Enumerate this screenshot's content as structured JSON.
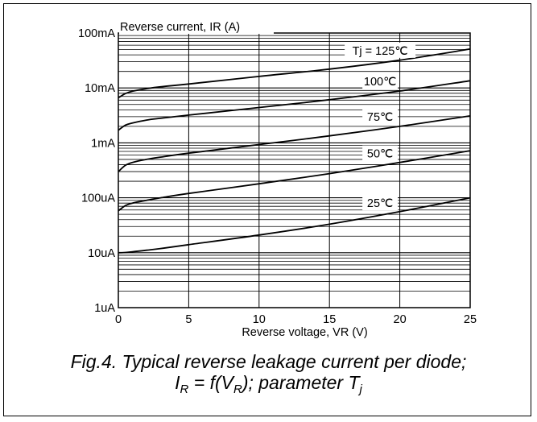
{
  "chart_data": {
    "type": "line",
    "ylabel": "Reverse current, IR (A)",
    "xlabel": "Reverse voltage, VR (V)",
    "x_ticks": [
      0,
      5,
      10,
      15,
      20,
      25
    ],
    "x_tick_labels": [
      "0",
      "5",
      "10",
      "15",
      "20",
      "25"
    ],
    "xlim": [
      0,
      25
    ],
    "y_scale": "log",
    "ylim": [
      1e-06,
      0.1
    ],
    "y_tick_values": [
      1e-06,
      1e-05,
      0.0001,
      0.001,
      0.01,
      0.1
    ],
    "y_tick_labels": [
      "1uA",
      "10uA",
      "100uA",
      "1mA",
      "10mA",
      "100mA"
    ],
    "grid": true,
    "series": [
      {
        "name": "Tj = 125℃",
        "x": [
          0,
          0.5,
          1,
          2,
          3,
          5,
          10,
          15,
          20,
          25
        ],
        "y": [
          0.0066,
          0.0079,
          0.0087,
          0.0097,
          0.0105,
          0.0118,
          0.0162,
          0.022,
          0.032,
          0.051
        ]
      },
      {
        "name": "100℃",
        "x": [
          0,
          0.5,
          1,
          2,
          3,
          5,
          10,
          15,
          20,
          25
        ],
        "y": [
          0.0017,
          0.0021,
          0.0023,
          0.0026,
          0.0028,
          0.0032,
          0.0044,
          0.0061,
          0.0088,
          0.0135
        ]
      },
      {
        "name": "75℃",
        "x": [
          0,
          0.5,
          1,
          2,
          3,
          5,
          10,
          15,
          20,
          25
        ],
        "y": [
          0.0003,
          0.00039,
          0.00044,
          0.0005,
          0.00055,
          0.00065,
          0.00093,
          0.00134,
          0.002,
          0.0031
        ]
      },
      {
        "name": "50℃",
        "x": [
          0,
          0.5,
          1,
          2,
          3,
          5,
          10,
          15,
          20,
          25
        ],
        "y": [
          5.8e-05,
          7.2e-05,
          8e-05,
          9e-05,
          0.0001,
          0.00012,
          0.00018,
          0.000275,
          0.00044,
          0.00072
        ]
      },
      {
        "name": "25℃",
        "x": [
          0,
          0.5,
          1,
          2,
          3,
          5,
          10,
          15,
          20,
          25
        ],
        "y": [
          1e-05,
          1.01e-05,
          1.04e-05,
          1.11e-05,
          1.19e-05,
          1.4e-05,
          2.1e-05,
          3.3e-05,
          5.6e-05,
          0.0001
        ]
      }
    ]
  },
  "caption": {
    "line1": "Fig.4.   Typical reverse leakage current per diode;",
    "eq_I": "I",
    "eq_I_sub": "R",
    "eq_mid": " = f(V",
    "eq_V_sub": "R",
    "eq_tail": "); parameter T",
    "eq_T_sub": "j"
  },
  "colors": {
    "line": "#000000",
    "grid": "#000000",
    "background": "#ffffff"
  }
}
